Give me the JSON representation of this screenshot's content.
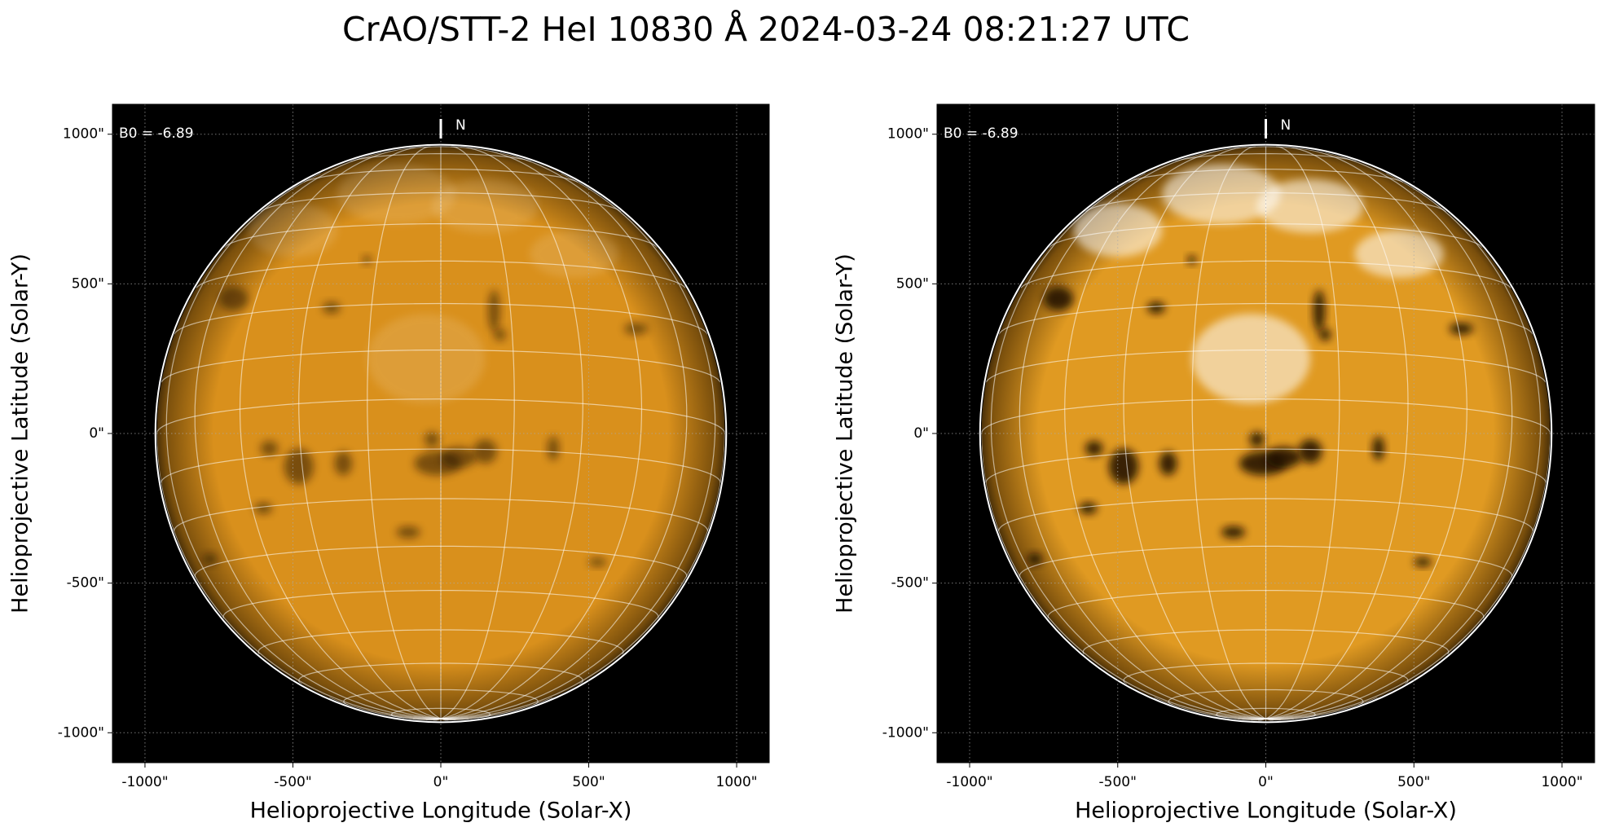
{
  "title": "CrAO/STT-2 HeI 10830 Å 2024-03-24 08:21:27 UTC",
  "chart_data": [
    {
      "type": "image",
      "color": "#d9901c",
      "xlabel": "Helioprojective Longitude (Solar-X)",
      "ylabel": "Helioprojective Latitude (Solar-Y)",
      "xlim": [
        -1110,
        1110
      ],
      "ylim": [
        -1100,
        1100
      ],
      "xticks": [
        {
          "value": -1000,
          "label": "-1000\""
        },
        {
          "value": -500,
          "label": "-500\""
        },
        {
          "value": 0,
          "label": "0\""
        },
        {
          "value": 500,
          "label": "500\""
        },
        {
          "value": 1000,
          "label": "1000\""
        }
      ],
      "yticks": [
        {
          "value": -1000,
          "label": "-1000\""
        },
        {
          "value": -500,
          "label": "-500\""
        },
        {
          "value": 0,
          "label": "0\""
        },
        {
          "value": 500,
          "label": "500\""
        },
        {
          "value": 1000,
          "label": "1000\""
        }
      ],
      "grid": true,
      "annotations": [
        "B0 = -6.89",
        "N"
      ]
    },
    {
      "type": "image",
      "color": "#e09a22",
      "xlabel": "Helioprojective Longitude (Solar-X)",
      "ylabel": "Helioprojective Latitude (Solar-Y)",
      "xlim": [
        -1110,
        1110
      ],
      "ylim": [
        -1100,
        1100
      ],
      "xticks": [
        {
          "value": -1000,
          "label": "-1000\""
        },
        {
          "value": -500,
          "label": "-500\""
        },
        {
          "value": 0,
          "label": "0\""
        },
        {
          "value": 500,
          "label": "500\""
        },
        {
          "value": 1000,
          "label": "1000\""
        }
      ],
      "yticks": [
        {
          "value": -1000,
          "label": "-1000\""
        },
        {
          "value": -500,
          "label": "-500\""
        },
        {
          "value": 0,
          "label": "0\""
        },
        {
          "value": 500,
          "label": "500\""
        },
        {
          "value": 1000,
          "label": "1000\""
        }
      ],
      "grid": true,
      "annotations": [
        "B0 = -6.89",
        "N"
      ]
    }
  ]
}
